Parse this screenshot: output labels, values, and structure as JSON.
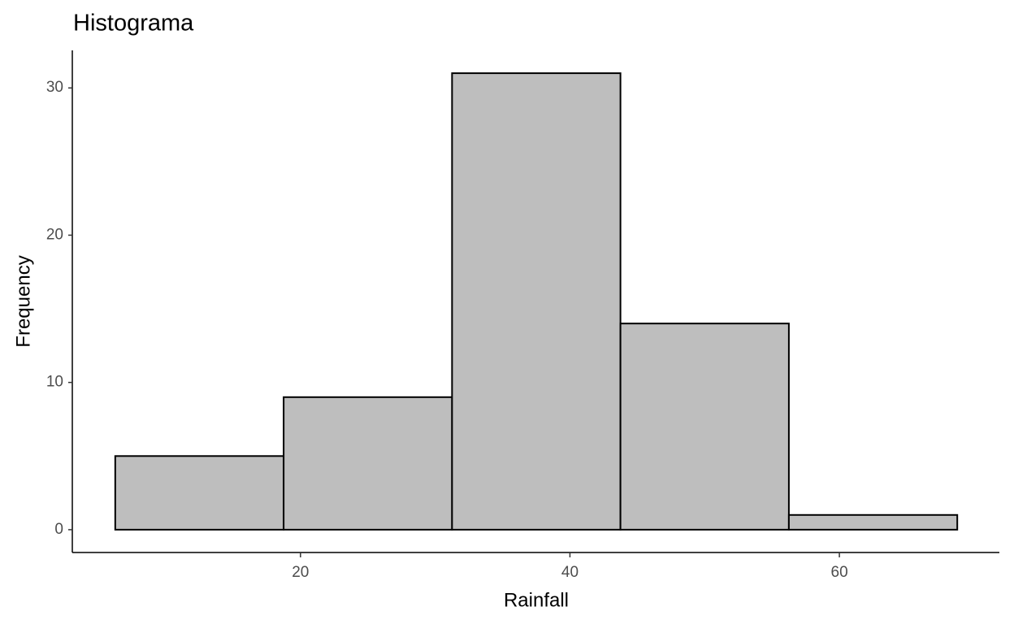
{
  "chart_data": {
    "type": "histogram",
    "title": "Histograma",
    "x_label": "Rainfall",
    "y_label": "Frequency",
    "bins": [
      6.25,
      18.75,
      31.25,
      43.75,
      56.25,
      68.75
    ],
    "values": [
      5,
      9,
      31,
      14,
      1
    ],
    "color": "#bebebe",
    "edgecolor": "#000000",
    "xlim": [
      3.125,
      71.875
    ],
    "ylim": [
      -1.55,
      32.55
    ],
    "xticks": [
      20,
      40,
      60
    ],
    "yticks": [
      0,
      10,
      20,
      30
    ],
    "grid": false
  }
}
